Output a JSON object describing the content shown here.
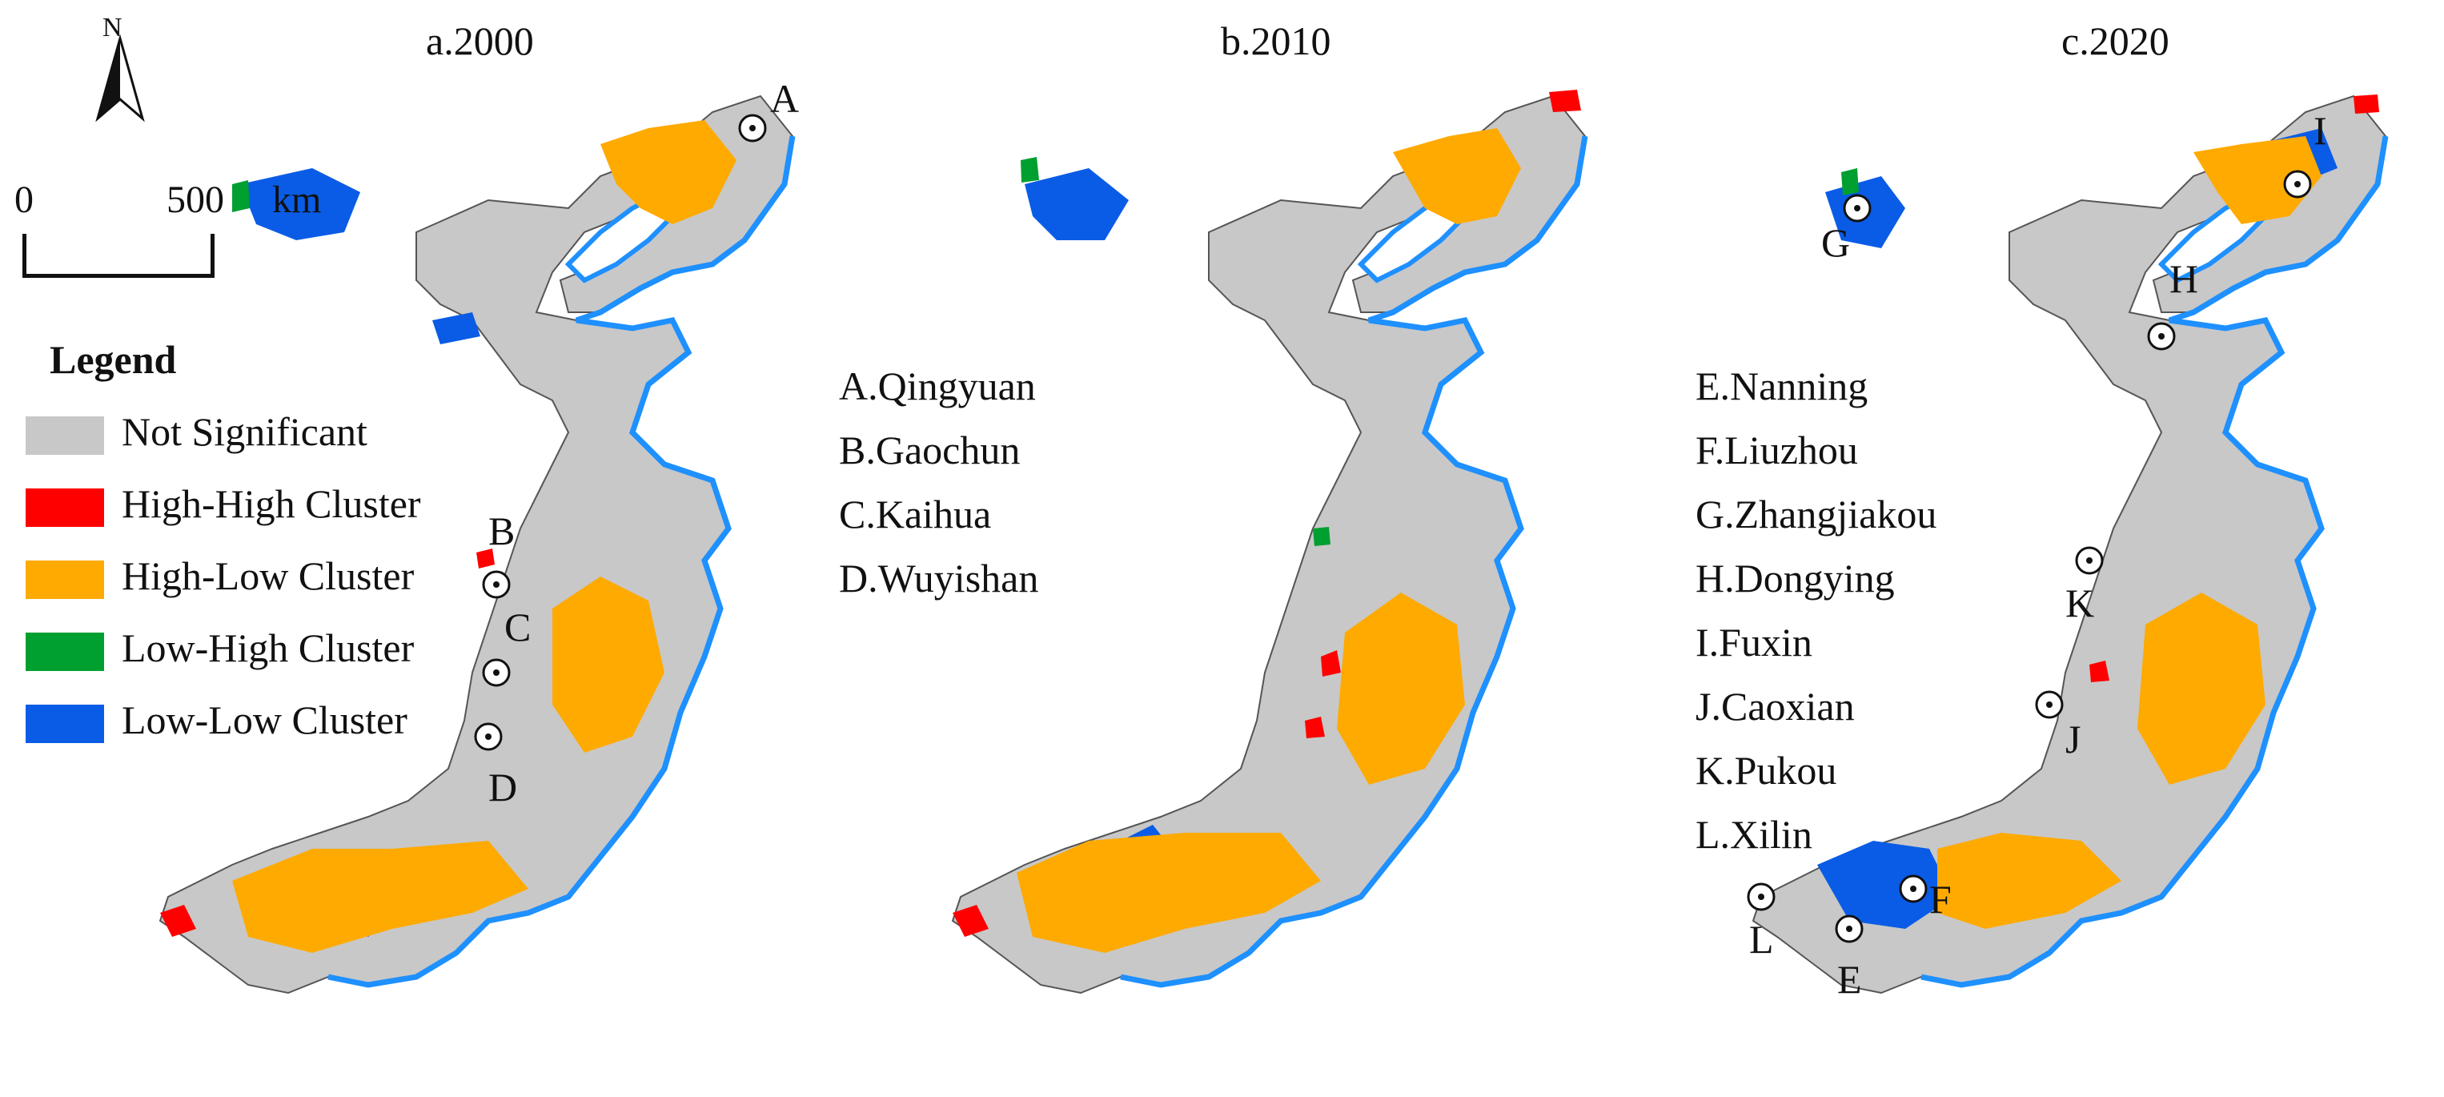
{
  "panels": [
    {
      "title": "a.2000",
      "key": "a"
    },
    {
      "title": "b.2010",
      "key": "b"
    },
    {
      "title": "c.2020",
      "key": "c"
    }
  ],
  "north_arrow": {
    "label": "N"
  },
  "scale_bar": {
    "start": "0",
    "end": "500",
    "unit": "km"
  },
  "legend": {
    "title": "Legend",
    "items": [
      {
        "label": "Not Significant",
        "color": "#c8c8c8"
      },
      {
        "label": "High-High Cluster",
        "color": "#ff0000"
      },
      {
        "label": "High-Low Cluster",
        "color": "#ffaa00"
      },
      {
        "label": "Low-High Cluster",
        "color": "#00a030"
      },
      {
        "label": "Low-Low Cluster",
        "color": "#0a5ce6"
      }
    ]
  },
  "name_list_1": [
    "A.Qingyuan",
    "B.Gaochun",
    "C.Kaihua",
    "D.Wuyishan"
  ],
  "name_list_2": [
    "E.Nanning",
    "F.Liuzhou",
    "G.Zhangjiakou",
    "H.Dongying",
    "I.Fuxin",
    "J.Caoxian",
    "K.Pukou",
    "L.Xilin"
  ],
  "markers": {
    "a": [
      "A",
      "B",
      "C",
      "D"
    ],
    "c": [
      "E",
      "F",
      "G",
      "H",
      "I",
      "J",
      "K",
      "L"
    ]
  },
  "colors": {
    "coastline": "#1e90ff",
    "not_significant": "#c8c8c8",
    "high_high": "#ff0000",
    "high_low": "#ffaa00",
    "low_high": "#00a030",
    "low_low": "#0a5ce6"
  }
}
